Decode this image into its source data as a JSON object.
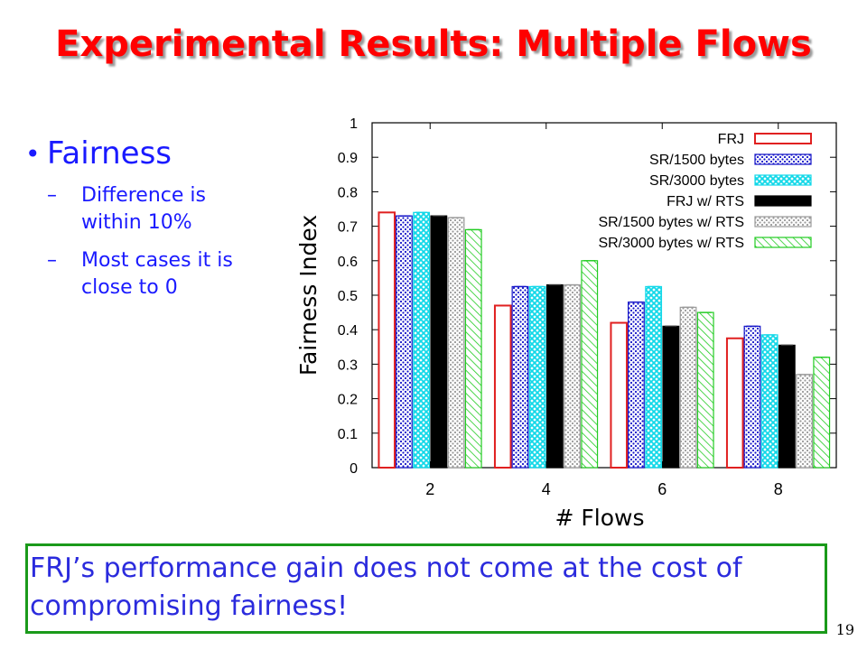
{
  "slide": {
    "title": "Experimental Results: Multiple Flows",
    "bullet": "Fairness",
    "subbullets": [
      "Difference is within 10%",
      "Most cases it is close to 0"
    ],
    "note": "FRJ’s performance gain does not come at the cost of compromising fairness!",
    "page_number": "19"
  },
  "colors": {
    "title": "#ff0000",
    "bullet_text": "#1a1aff",
    "note_border": "#1a9a1a",
    "note_text": "#2b2bdd"
  },
  "chart_data": {
    "type": "bar",
    "xlabel": "# Flows",
    "ylabel": "Fairness Index",
    "categories": [
      "2",
      "4",
      "6",
      "8"
    ],
    "ylim": [
      0,
      1
    ],
    "yticks": [
      "0",
      "0.1",
      "0.2",
      "0.3",
      "0.4",
      "0.5",
      "0.6",
      "0.7",
      "0.8",
      "0.9",
      "1"
    ],
    "legend_position": "top-right",
    "series": [
      {
        "name": "FRJ",
        "color": "#e02020",
        "pattern": "outline",
        "values": [
          0.74,
          0.47,
          0.42,
          0.375
        ]
      },
      {
        "name": "SR/1500 bytes",
        "color": "#1515c8",
        "pattern": "dots",
        "values": [
          0.73,
          0.525,
          0.48,
          0.41
        ]
      },
      {
        "name": "SR/3000 bytes",
        "color": "#12d8e8",
        "pattern": "cross",
        "values": [
          0.74,
          0.525,
          0.525,
          0.385
        ]
      },
      {
        "name": "FRJ w/ RTS",
        "color": "#000000",
        "pattern": "solid",
        "values": [
          0.73,
          0.53,
          0.41,
          0.355
        ]
      },
      {
        "name": "SR/1500 bytes w/ RTS",
        "color": "#9a9a9a",
        "pattern": "dots",
        "values": [
          0.725,
          0.53,
          0.465,
          0.27
        ]
      },
      {
        "name": "SR/3000 bytes w/ RTS",
        "color": "#22cc22",
        "pattern": "hatch",
        "values": [
          0.69,
          0.6,
          0.45,
          0.32
        ]
      }
    ]
  }
}
